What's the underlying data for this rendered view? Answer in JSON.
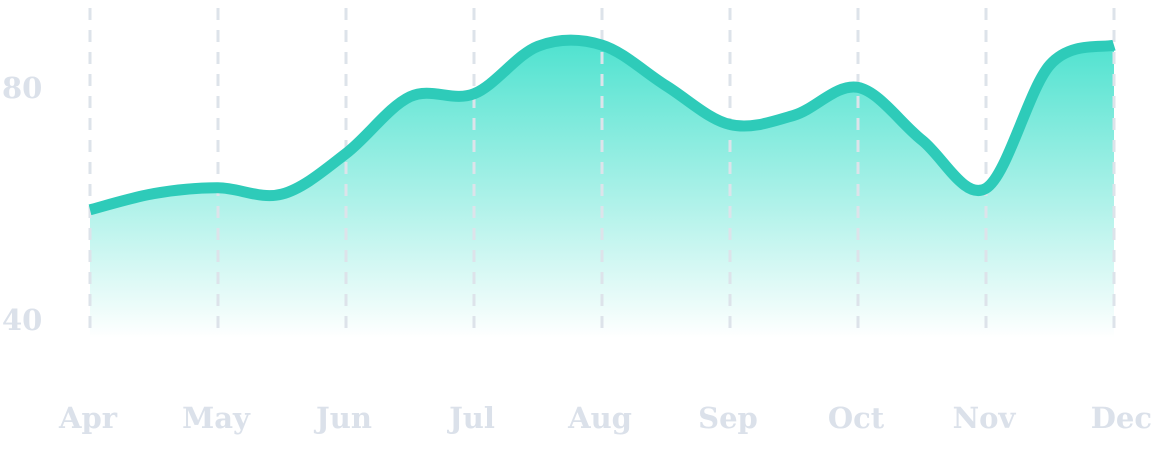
{
  "chart_data": {
    "type": "area",
    "title": "",
    "xlabel": "",
    "ylabel": "",
    "categories": [
      "Apr",
      "May",
      "Jun",
      "Jul",
      "Aug",
      "Sep",
      "Oct",
      "Nov",
      "Dec"
    ],
    "x_labels": [
      "Apr",
      "May",
      "Jun",
      "Jul",
      "Aug",
      "Sep",
      "Oct",
      "Nov",
      "Dec"
    ],
    "y_ticks": [
      40,
      80
    ],
    "y_tick_labels": [
      "40",
      "80"
    ],
    "ylim": [
      37,
      94
    ],
    "grid": "vertical dashed lines at each month",
    "legend": "none",
    "series": [
      {
        "points": [
          {
            "x": "Apr",
            "y": 59.0
          },
          {
            "x": "Apr-May",
            "y": 61.8
          },
          {
            "x": "May",
            "y": 62.8
          },
          {
            "x": "May-Jun",
            "y": 61.7
          },
          {
            "x": "Jun",
            "y": 68.7
          },
          {
            "x": "Jun-Jul",
            "y": 78.5
          },
          {
            "x": "Jul",
            "y": 79.0
          },
          {
            "x": "Jul-Aug",
            "y": 87.2
          },
          {
            "x": "Aug",
            "y": 87.4
          },
          {
            "x": "Aug-Sep",
            "y": 80.4
          },
          {
            "x": "Sep",
            "y": 73.7
          },
          {
            "x": "Sep-Oct",
            "y": 75.3
          },
          {
            "x": "Oct",
            "y": 80.1
          },
          {
            "x": "Oct-Nov",
            "y": 71.0
          },
          {
            "x": "Nov",
            "y": 62.7
          },
          {
            "x": "Nov-Dec",
            "y": 84.0
          },
          {
            "x": "Dec",
            "y": 87.4
          }
        ]
      }
    ]
  },
  "colors": {
    "line": "#2ecbb9",
    "fill_top": "#4ee2cf",
    "fill_bottom": "#ffffff",
    "grid": "#dde3ea",
    "tick_text": "#dbe1ea"
  }
}
